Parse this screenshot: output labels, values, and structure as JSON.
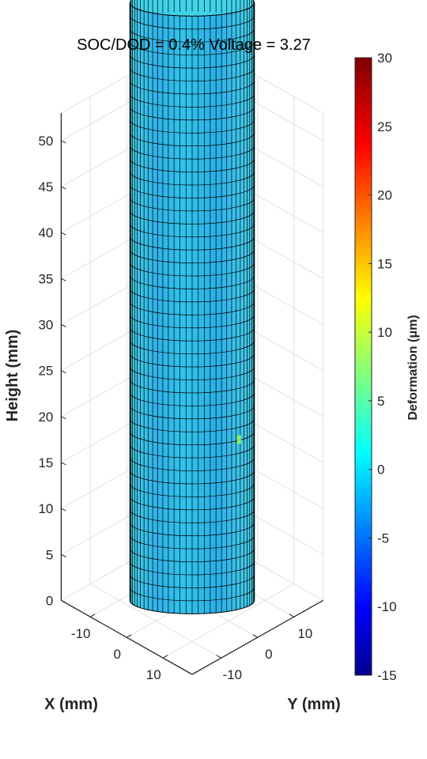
{
  "chart_data": {
    "type": "surface3d",
    "title": "SOC/DOD = 0.4%  Voltage = 3.27",
    "xlabel": "X (mm)",
    "ylabel": "Y (mm)",
    "zlabel": "Height (mm)",
    "x_ticks": [
      "-10",
      "0",
      "10"
    ],
    "y_ticks": [
      "-10",
      "0",
      "10"
    ],
    "z_ticks": [
      "0",
      "5",
      "10",
      "15",
      "20",
      "25",
      "30",
      "35",
      "40",
      "45",
      "50"
    ],
    "xlim": [
      -18,
      18
    ],
    "ylim": [
      -18,
      18
    ],
    "zlim": [
      0,
      53
    ],
    "grid": true,
    "colorbar": {
      "label": "Deformation (μm)",
      "range": [
        -15,
        30
      ],
      "ticks": [
        "30",
        "25",
        "20",
        "15",
        "10",
        "5",
        "0",
        "-5",
        "-10",
        "-15"
      ],
      "colormap": "jet"
    },
    "cylinder": {
      "radius_mm": 9,
      "height_mm": 65,
      "deformation_um_typical": 1.5,
      "deformation_um_min": -1.5,
      "deformation_um_max": 5
    }
  }
}
